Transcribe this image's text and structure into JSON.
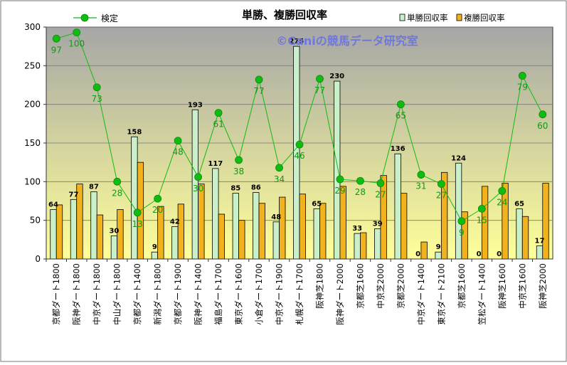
{
  "chart_data": {
    "type": "bar",
    "title": "単勝、複勝回収率",
    "watermark": "©Caniの競馬データ研究室",
    "categories": [
      "京都ダート1800",
      "阪神ダート1800",
      "中京ダート1800",
      "中山ダート1800",
      "京都ダート1400",
      "新潟ダート1800",
      "京都ダート1900",
      "阪神ダート1400",
      "福島ダート1700",
      "東京ダート1600",
      "小倉ダート1700",
      "中京ダート1900",
      "札幌ダート1700",
      "阪神芝1800",
      "阪神ダート2000",
      "京都芝1600",
      "中京芝2000",
      "京都芝2000",
      "中京ダート1400",
      "東京ダート2100",
      "京都芝1600",
      "笠松ダート1400",
      "阪神芝1600",
      "中京芝1600",
      "阪神芝2000"
    ],
    "series": [
      {
        "name": "単勝回収率",
        "type": "bar",
        "color": "#c9f0c9",
        "values": [
          64,
          77,
          87,
          30,
          158,
          9,
          42,
          193,
          117,
          85,
          86,
          48,
          275,
          65,
          230,
          33,
          39,
          136,
          0,
          9,
          124,
          0,
          0,
          65,
          17
        ]
      },
      {
        "name": "複勝回収率",
        "type": "bar",
        "color": "#f2b21d",
        "values": [
          70,
          97,
          57,
          64,
          125,
          68,
          71,
          97,
          58,
          50,
          72,
          80,
          84,
          72,
          94,
          34,
          108,
          85,
          22,
          112,
          61,
          94,
          98,
          55,
          98
        ]
      },
      {
        "name": "検定",
        "type": "line",
        "color": "#11bb11",
        "values": [
          97,
          100,
          73,
          28,
          13,
          20,
          48,
          30,
          61,
          38,
          77,
          34,
          46,
          77,
          29,
          28,
          27,
          65,
          31,
          27,
          9,
          15,
          24,
          79,
          60
        ]
      }
    ],
    "bar_labels": [
      "64",
      "77",
      "87",
      "30",
      "158",
      "9",
      "42",
      "193",
      "117",
      "85",
      "86",
      "48",
      "275",
      "65",
      "230",
      "33",
      "39",
      "136",
      "0",
      "9",
      "124",
      "0",
      "0",
      "65",
      "17"
    ],
    "line_labels": [
      "97",
      "100",
      "73",
      "28",
      "13",
      "20",
      "48",
      "30",
      "61",
      "38",
      "77",
      "34",
      "46",
      "77",
      "29",
      "28",
      "27",
      "65",
      "31",
      "27",
      "9",
      "15",
      "24",
      "79",
      "60"
    ],
    "y_axis": {
      "min": 0,
      "max": 300,
      "ticks": [
        "0",
        "50",
        "100",
        "150",
        "200",
        "250",
        "300"
      ]
    },
    "line_y_values": [
      285,
      293,
      222,
      100,
      60,
      78,
      153,
      106,
      189,
      128,
      232,
      118,
      148,
      233,
      103,
      101,
      98,
      200,
      109,
      97,
      49,
      65,
      88,
      237,
      187
    ],
    "grid": true,
    "legend_position": "top"
  },
  "colors": {
    "plot_top": "#a6a6a6",
    "plot_bottom": "#ffff99",
    "border": "#333333",
    "line": "#11bb11",
    "line_label": "#119911",
    "watermark": "#6f78d8"
  }
}
